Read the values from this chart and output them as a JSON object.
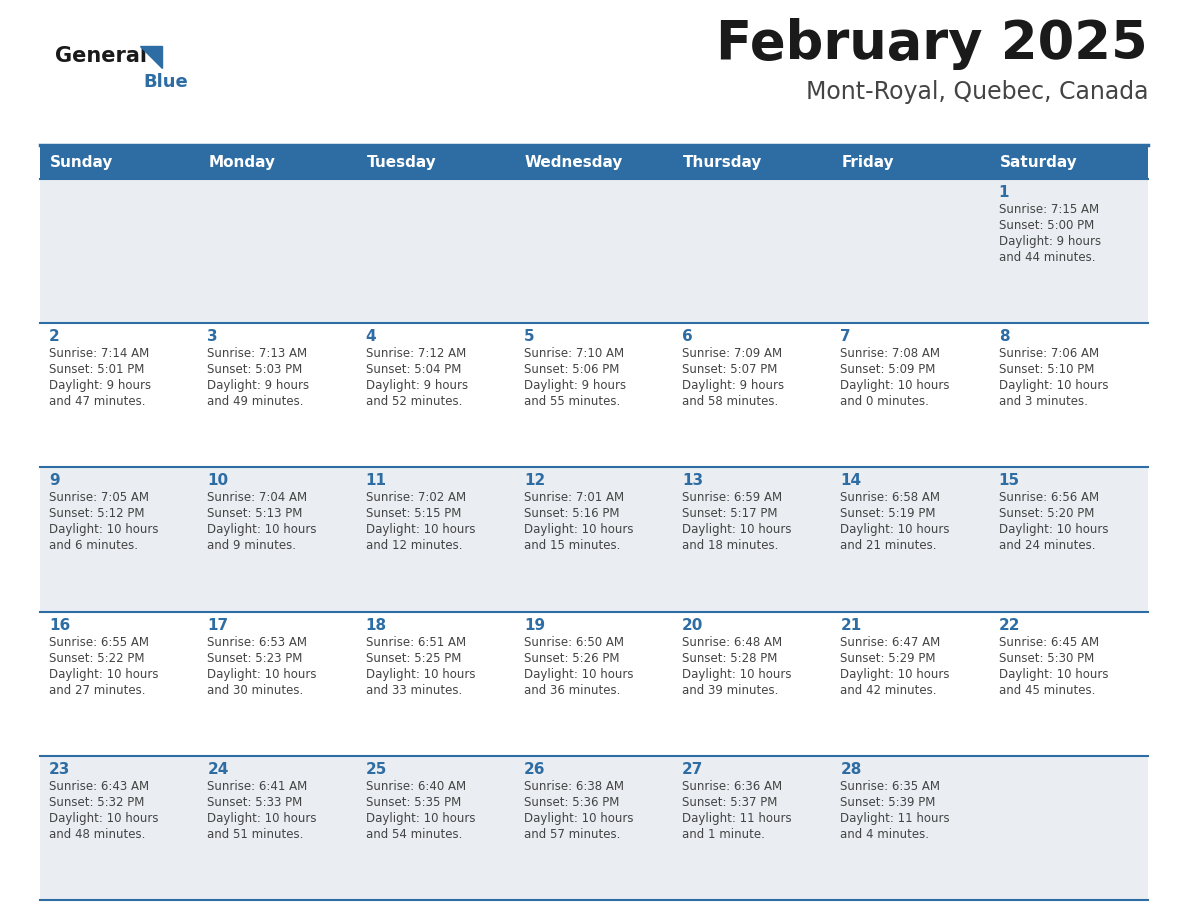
{
  "title": "February 2025",
  "subtitle": "Mont-Royal, Quebec, Canada",
  "weekdays": [
    "Sunday",
    "Monday",
    "Tuesday",
    "Wednesday",
    "Thursday",
    "Friday",
    "Saturday"
  ],
  "header_bg": "#2E6DA4",
  "header_text": "#FFFFFF",
  "row0_bg": "#EAEEF2",
  "row1_bg": "#FFFFFF",
  "day_number_color": "#2E6DA4",
  "info_text_color": "#444444",
  "border_color": "#2E6DA4",
  "logo_general_color": "#1a1a1a",
  "logo_blue_color": "#2E6DA4",
  "days": [
    {
      "day": 1,
      "row": 0,
      "col": 6,
      "sunrise": "7:15 AM",
      "sunset": "5:00 PM",
      "daylight_line1": "Daylight: 9 hours",
      "daylight_line2": "and 44 minutes."
    },
    {
      "day": 2,
      "row": 1,
      "col": 0,
      "sunrise": "7:14 AM",
      "sunset": "5:01 PM",
      "daylight_line1": "Daylight: 9 hours",
      "daylight_line2": "and 47 minutes."
    },
    {
      "day": 3,
      "row": 1,
      "col": 1,
      "sunrise": "7:13 AM",
      "sunset": "5:03 PM",
      "daylight_line1": "Daylight: 9 hours",
      "daylight_line2": "and 49 minutes."
    },
    {
      "day": 4,
      "row": 1,
      "col": 2,
      "sunrise": "7:12 AM",
      "sunset": "5:04 PM",
      "daylight_line1": "Daylight: 9 hours",
      "daylight_line2": "and 52 minutes."
    },
    {
      "day": 5,
      "row": 1,
      "col": 3,
      "sunrise": "7:10 AM",
      "sunset": "5:06 PM",
      "daylight_line1": "Daylight: 9 hours",
      "daylight_line2": "and 55 minutes."
    },
    {
      "day": 6,
      "row": 1,
      "col": 4,
      "sunrise": "7:09 AM",
      "sunset": "5:07 PM",
      "daylight_line1": "Daylight: 9 hours",
      "daylight_line2": "and 58 minutes."
    },
    {
      "day": 7,
      "row": 1,
      "col": 5,
      "sunrise": "7:08 AM",
      "sunset": "5:09 PM",
      "daylight_line1": "Daylight: 10 hours",
      "daylight_line2": "and 0 minutes."
    },
    {
      "day": 8,
      "row": 1,
      "col": 6,
      "sunrise": "7:06 AM",
      "sunset": "5:10 PM",
      "daylight_line1": "Daylight: 10 hours",
      "daylight_line2": "and 3 minutes."
    },
    {
      "day": 9,
      "row": 2,
      "col": 0,
      "sunrise": "7:05 AM",
      "sunset": "5:12 PM",
      "daylight_line1": "Daylight: 10 hours",
      "daylight_line2": "and 6 minutes."
    },
    {
      "day": 10,
      "row": 2,
      "col": 1,
      "sunrise": "7:04 AM",
      "sunset": "5:13 PM",
      "daylight_line1": "Daylight: 10 hours",
      "daylight_line2": "and 9 minutes."
    },
    {
      "day": 11,
      "row": 2,
      "col": 2,
      "sunrise": "7:02 AM",
      "sunset": "5:15 PM",
      "daylight_line1": "Daylight: 10 hours",
      "daylight_line2": "and 12 minutes."
    },
    {
      "day": 12,
      "row": 2,
      "col": 3,
      "sunrise": "7:01 AM",
      "sunset": "5:16 PM",
      "daylight_line1": "Daylight: 10 hours",
      "daylight_line2": "and 15 minutes."
    },
    {
      "day": 13,
      "row": 2,
      "col": 4,
      "sunrise": "6:59 AM",
      "sunset": "5:17 PM",
      "daylight_line1": "Daylight: 10 hours",
      "daylight_line2": "and 18 minutes."
    },
    {
      "day": 14,
      "row": 2,
      "col": 5,
      "sunrise": "6:58 AM",
      "sunset": "5:19 PM",
      "daylight_line1": "Daylight: 10 hours",
      "daylight_line2": "and 21 minutes."
    },
    {
      "day": 15,
      "row": 2,
      "col": 6,
      "sunrise": "6:56 AM",
      "sunset": "5:20 PM",
      "daylight_line1": "Daylight: 10 hours",
      "daylight_line2": "and 24 minutes."
    },
    {
      "day": 16,
      "row": 3,
      "col": 0,
      "sunrise": "6:55 AM",
      "sunset": "5:22 PM",
      "daylight_line1": "Daylight: 10 hours",
      "daylight_line2": "and 27 minutes."
    },
    {
      "day": 17,
      "row": 3,
      "col": 1,
      "sunrise": "6:53 AM",
      "sunset": "5:23 PM",
      "daylight_line1": "Daylight: 10 hours",
      "daylight_line2": "and 30 minutes."
    },
    {
      "day": 18,
      "row": 3,
      "col": 2,
      "sunrise": "6:51 AM",
      "sunset": "5:25 PM",
      "daylight_line1": "Daylight: 10 hours",
      "daylight_line2": "and 33 minutes."
    },
    {
      "day": 19,
      "row": 3,
      "col": 3,
      "sunrise": "6:50 AM",
      "sunset": "5:26 PM",
      "daylight_line1": "Daylight: 10 hours",
      "daylight_line2": "and 36 minutes."
    },
    {
      "day": 20,
      "row": 3,
      "col": 4,
      "sunrise": "6:48 AM",
      "sunset": "5:28 PM",
      "daylight_line1": "Daylight: 10 hours",
      "daylight_line2": "and 39 minutes."
    },
    {
      "day": 21,
      "row": 3,
      "col": 5,
      "sunrise": "6:47 AM",
      "sunset": "5:29 PM",
      "daylight_line1": "Daylight: 10 hours",
      "daylight_line2": "and 42 minutes."
    },
    {
      "day": 22,
      "row": 3,
      "col": 6,
      "sunrise": "6:45 AM",
      "sunset": "5:30 PM",
      "daylight_line1": "Daylight: 10 hours",
      "daylight_line2": "and 45 minutes."
    },
    {
      "day": 23,
      "row": 4,
      "col": 0,
      "sunrise": "6:43 AM",
      "sunset": "5:32 PM",
      "daylight_line1": "Daylight: 10 hours",
      "daylight_line2": "and 48 minutes."
    },
    {
      "day": 24,
      "row": 4,
      "col": 1,
      "sunrise": "6:41 AM",
      "sunset": "5:33 PM",
      "daylight_line1": "Daylight: 10 hours",
      "daylight_line2": "and 51 minutes."
    },
    {
      "day": 25,
      "row": 4,
      "col": 2,
      "sunrise": "6:40 AM",
      "sunset": "5:35 PM",
      "daylight_line1": "Daylight: 10 hours",
      "daylight_line2": "and 54 minutes."
    },
    {
      "day": 26,
      "row": 4,
      "col": 3,
      "sunrise": "6:38 AM",
      "sunset": "5:36 PM",
      "daylight_line1": "Daylight: 10 hours",
      "daylight_line2": "and 57 minutes."
    },
    {
      "day": 27,
      "row": 4,
      "col": 4,
      "sunrise": "6:36 AM",
      "sunset": "5:37 PM",
      "daylight_line1": "Daylight: 11 hours",
      "daylight_line2": "and 1 minute."
    },
    {
      "day": 28,
      "row": 4,
      "col": 5,
      "sunrise": "6:35 AM",
      "sunset": "5:39 PM",
      "daylight_line1": "Daylight: 11 hours",
      "daylight_line2": "and 4 minutes."
    }
  ],
  "fig_width": 11.88,
  "fig_height": 9.18,
  "dpi": 100
}
